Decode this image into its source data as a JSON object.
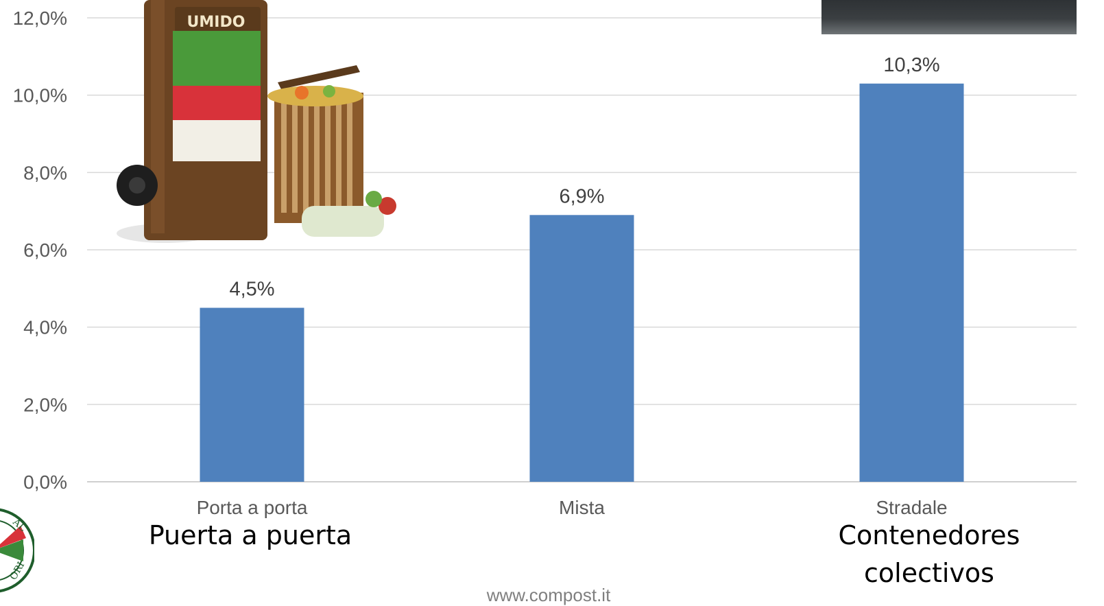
{
  "chart_data": {
    "type": "bar",
    "categories": [
      "Porta a porta",
      "Mista",
      "Stradale"
    ],
    "values": [
      4.5,
      6.9,
      10.3
    ],
    "data_labels": [
      "4,5%",
      "6,9%",
      "10,3%"
    ],
    "ylim": [
      0,
      12
    ],
    "yticks": [
      0,
      2,
      4,
      6,
      8,
      10,
      12
    ],
    "ytick_labels": [
      "0,0%",
      "2,0%",
      "4,0%",
      "6,0%",
      "8,0%",
      "10,0%",
      "12,0%"
    ],
    "bar_color": "#4f81bd",
    "grid": true,
    "legend": "none"
  },
  "annotations": {
    "sub_labels": [
      "Puerta a puerta",
      "Contenedores colectivos"
    ],
    "footer": "www.compost.it"
  },
  "images": {
    "bin_photo": "organic-waste-bin-photo",
    "bin_label": "UMIDO",
    "street_photo": "street-container-photo",
    "logo": "round-seal-logo"
  }
}
